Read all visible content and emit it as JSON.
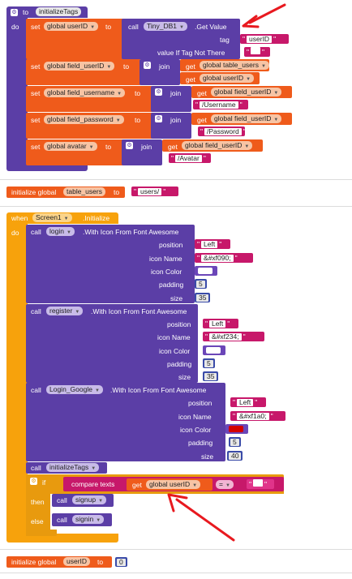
{
  "blocks": {
    "init_tags": {
      "header_to": "to",
      "proc_name": "initializeTags",
      "do_label": "do",
      "set1": {
        "set": "set",
        "var": "global userID",
        "to": "to",
        "call": "call",
        "component": "Tiny_DB1",
        "method": ".Get Value",
        "tag_label": "tag",
        "tag_value": "userID",
        "vitnt_label": "value If Tag Not There",
        "vitnt_value": ""
      },
      "set2": {
        "set": "set",
        "var": "global field_userID",
        "to": "to",
        "join": "join",
        "get": "get",
        "arg1": "global table_users",
        "arg2": "global userID"
      },
      "set3": {
        "set": "set",
        "var": "global field_username",
        "to": "to",
        "join": "join",
        "get": "get",
        "arg1": "global field_userID",
        "arg2": "/Username"
      },
      "set4": {
        "set": "set",
        "var": "global field_password",
        "to": "to",
        "join": "join",
        "get": "get",
        "arg1": "global field_userID",
        "arg2": "/Password"
      },
      "set5": {
        "set": "set",
        "var": "global avatar",
        "to": "to",
        "join": "join",
        "get": "get",
        "arg1": "global field_userID",
        "arg2": "/Avatar"
      }
    },
    "init_table_users": {
      "label": "initialize global",
      "name": "table_users",
      "to": "to",
      "value": "users/"
    },
    "screen_init": {
      "when": "when",
      "component": "Screen1",
      "event": ".Initialize",
      "do_label": "do",
      "call_label": "call",
      "method": ".With Icon From Font Awesome",
      "position_label": "position",
      "icon_name_label": "icon Name",
      "icon_color_label": "icon Color",
      "padding_label": "padding",
      "size_label": "size",
      "login": {
        "component": "login",
        "position": "Left",
        "icon_name": "&#xf090;",
        "icon_color": "#ffffff",
        "padding": "5",
        "size": "35"
      },
      "register": {
        "component": "register",
        "position": "Left",
        "icon_name": "&#xf234;",
        "icon_color": "#ffffff",
        "padding": "5",
        "size": "35"
      },
      "google": {
        "component": "Login_Google",
        "position": "Left",
        "icon_name": "&#xf1a0;",
        "icon_color": "#d40000",
        "padding": "5",
        "size": "40"
      },
      "call_init": "initializeTags",
      "if_label": "if",
      "compare": "compare texts",
      "get": "get",
      "cmp_var": "global userID",
      "op": "=",
      "cmp_value": "",
      "then_label": "then",
      "then_call": "signup",
      "else_label": "else",
      "else_call": "signin"
    },
    "init_userid": {
      "label": "initialize global",
      "name": "userID",
      "to": "to",
      "value": "0"
    }
  },
  "colors": {
    "annotation_arrow": "#e8191f"
  },
  "icons": {
    "gear": "gear-icon",
    "dropdown": "chevron-down-icon"
  }
}
